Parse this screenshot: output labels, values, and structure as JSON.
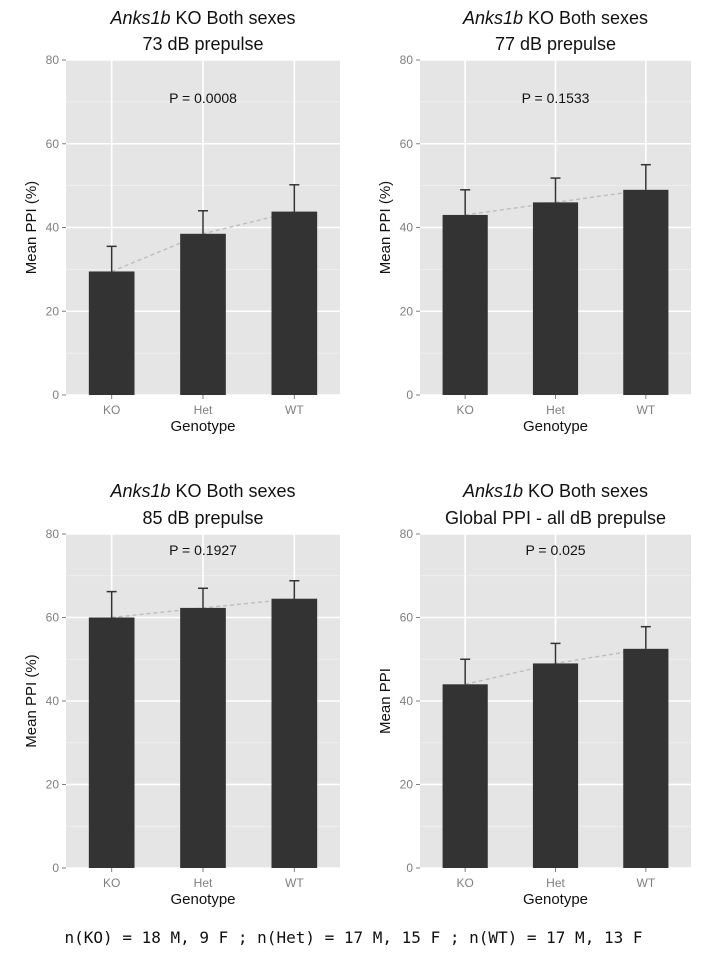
{
  "footnote": "n(KO) = 18 M, 9 F ; n(Het) = 17 M, 15 F ; n(WT) = 17 M, 13 F",
  "colors": {
    "panel_bg": "#e5e5e5",
    "grid": "#ffffff",
    "bar": "#333333",
    "trend": "#bdbdbd",
    "tick_text": "#7f7f7f"
  },
  "chart_data": [
    {
      "type": "bar",
      "title_italic": "Anks1b",
      "title": " KO Both sexes",
      "subtitle": "73 dB prepulse",
      "annotation": "P = 0.0008",
      "xlabel": "Genotype",
      "ylabel": "Mean PPI (%)",
      "categories": [
        "KO",
        "Het",
        "WT"
      ],
      "values": [
        29.5,
        38.5,
        43.8
      ],
      "error_upper": [
        35.5,
        44.0,
        50.2
      ],
      "ylim": [
        0,
        80
      ],
      "yticks": [
        0,
        20,
        40,
        60,
        80
      ],
      "grid": true
    },
    {
      "type": "bar",
      "title_italic": "Anks1b",
      "title": " KO Both sexes",
      "subtitle": "77 dB prepulse",
      "annotation": "P = 0.1533",
      "xlabel": "Genotype",
      "ylabel": "Mean PPI (%)",
      "categories": [
        "KO",
        "Het",
        "WT"
      ],
      "values": [
        43.0,
        46.0,
        49.0
      ],
      "error_upper": [
        49.0,
        51.8,
        55.0
      ],
      "ylim": [
        0,
        80
      ],
      "yticks": [
        0,
        20,
        40,
        60,
        80
      ],
      "grid": true
    },
    {
      "type": "bar",
      "title_italic": "Anks1b",
      "title": " KO Both sexes",
      "subtitle": "85 dB prepulse",
      "annotation": "P = 0.1927",
      "xlabel": "Genotype",
      "ylabel": "Mean PPI (%)",
      "categories": [
        "KO",
        "Het",
        "WT"
      ],
      "values": [
        60.0,
        62.3,
        64.5
      ],
      "error_upper": [
        66.2,
        67.0,
        68.8
      ],
      "ylim": [
        0,
        80
      ],
      "yticks": [
        0,
        20,
        40,
        60,
        80
      ],
      "grid": true
    },
    {
      "type": "bar",
      "title_italic": "Anks1b",
      "title": " KO Both sexes",
      "subtitle": "Global PPI - all dB prepulse",
      "annotation": "P = 0.025",
      "xlabel": "Genotype",
      "ylabel": "Mean PPI",
      "categories": [
        "KO",
        "Het",
        "WT"
      ],
      "values": [
        44.0,
        49.0,
        52.5
      ],
      "error_upper": [
        50.0,
        53.8,
        57.8
      ],
      "ylim": [
        0,
        80
      ],
      "yticks": [
        0,
        20,
        40,
        60,
        80
      ],
      "grid": true
    }
  ]
}
